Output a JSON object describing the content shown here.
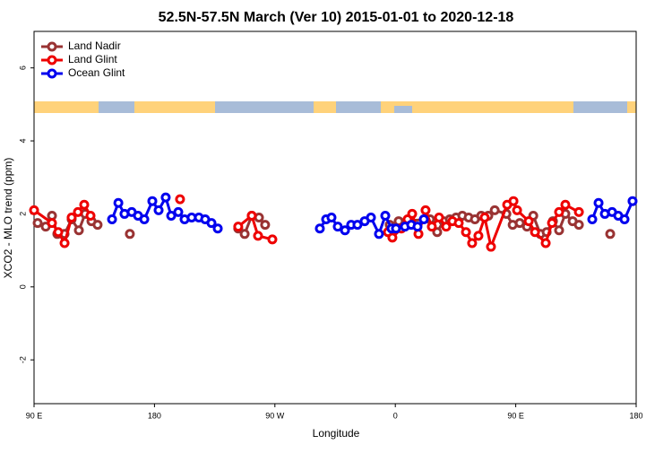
{
  "chart_data": {
    "type": "line",
    "title": "52.5N-57.5N March (Ver 10)   2015-01-01 to 2020-12-18",
    "x_label": "Longitude",
    "y_label": "XCO2 - MLO trend (ppm)",
    "xlim": [
      90,
      540
    ],
    "xticks": [
      {
        "value": 90,
        "label": "90 E"
      },
      180,
      {
        "value": 270,
        "label": "90 W"
      },
      {
        "value": 360,
        "label": "0"
      },
      {
        "value": 450,
        "label": "90 E"
      },
      {
        "value": 540,
        "label": "180"
      }
    ],
    "ylim": [
      -3.2,
      7.0
    ],
    "yticks": [
      -2,
      0,
      2,
      4,
      6
    ],
    "legend": "upper left",
    "series": [
      {
        "name": "Land Nadir",
        "color": "#993333",
        "x": [
          92.7,
          98.7,
          103.4,
          107.4,
          112.8,
          118.1,
          123.5,
          128.2,
          132.9,
          137.5,
          150,
          161.6,
          200,
          242.6,
          247.4,
          252.7,
          258.1,
          262.7,
          300,
          355.8,
          362.5,
          386.0,
          391.3,
          396.0,
          400.7,
          405.4,
          410.1,
          414.8,
          419.5,
          424.2,
          429.5,
          434.3,
          443.0,
          447.7,
          453.0,
          458.4,
          463.1,
          468.4,
          473.1,
          477.8,
          482.4,
          487.1,
          492.5,
          497.2,
          510,
          520.6
        ],
        "values": [
          1.75,
          1.65,
          1.95,
          1.45,
          1.45,
          1.85,
          1.55,
          2.0,
          1.8,
          1.7,
          null,
          1.45,
          null,
          1.6,
          1.45,
          1.95,
          1.9,
          1.7,
          null,
          1.7,
          1.8,
          1.85,
          1.5,
          1.8,
          1.85,
          1.9,
          1.95,
          1.9,
          1.85,
          1.95,
          1.95,
          2.1,
          2.0,
          1.7,
          1.75,
          1.65,
          1.95,
          1.45,
          1.5,
          1.8,
          1.55,
          2.0,
          1.8,
          1.7,
          null,
          1.45
        ]
      },
      {
        "name": "Land Glint",
        "color": "#ee0000",
        "x": [
          90,
          103.4,
          108.1,
          112.8,
          118.1,
          122.8,
          127.5,
          132.2,
          170,
          199.1,
          220,
          242.6,
          252.7,
          257.4,
          268.1,
          300,
          354.5,
          357.8,
          364.5,
          369.2,
          372.6,
          377.3,
          382.6,
          387.3,
          392.7,
          398.0,
          402.7,
          407.4,
          412.8,
          417.4,
          422.1,
          426.8,
          431.5,
          443.6,
          448.3,
          451.0,
          459.7,
          464.4,
          472.4,
          477.1,
          482.4,
          487.1,
          497.2
        ],
        "values": [
          2.1,
          1.75,
          1.5,
          1.2,
          1.9,
          2.05,
          2.25,
          1.95,
          null,
          2.4,
          null,
          1.65,
          1.95,
          1.4,
          1.3,
          null,
          1.5,
          1.35,
          1.6,
          1.85,
          2.0,
          1.45,
          2.1,
          1.65,
          1.9,
          1.65,
          1.8,
          1.75,
          1.5,
          1.2,
          1.4,
          1.9,
          1.1,
          2.25,
          2.35,
          2.1,
          1.8,
          1.5,
          1.2,
          1.75,
          2.05,
          2.25,
          2.05
        ]
      },
      {
        "name": "Ocean Glint",
        "color": "#0000ee",
        "x": [
          148.3,
          153.0,
          157.6,
          163.0,
          167.7,
          172.4,
          178.4,
          183.1,
          188.4,
          192.5,
          197.8,
          202.5,
          207.8,
          213.2,
          217.9,
          222.6,
          227.3,
          260,
          303.6,
          308.3,
          312.3,
          317.0,
          322.4,
          327.0,
          331.7,
          337.1,
          341.8,
          347.8,
          352.5,
          357.2,
          360.5,
          367.2,
          371.9,
          376.6,
          381.3,
          450,
          507.2,
          511.9,
          516.6,
          522.0,
          526.6,
          531.3,
          537.3
        ],
        "values": [
          1.85,
          2.3,
          2.0,
          2.05,
          1.95,
          1.85,
          2.35,
          2.1,
          2.45,
          1.95,
          2.05,
          1.85,
          1.9,
          1.9,
          1.85,
          1.75,
          1.6,
          null,
          1.6,
          1.85,
          1.9,
          1.65,
          1.55,
          1.7,
          1.7,
          1.8,
          1.9,
          1.45,
          1.95,
          1.6,
          1.6,
          1.65,
          1.7,
          1.65,
          1.85,
          null,
          1.85,
          2.3,
          2.0,
          2.05,
          1.95,
          1.85,
          2.35
        ]
      }
    ]
  }
}
